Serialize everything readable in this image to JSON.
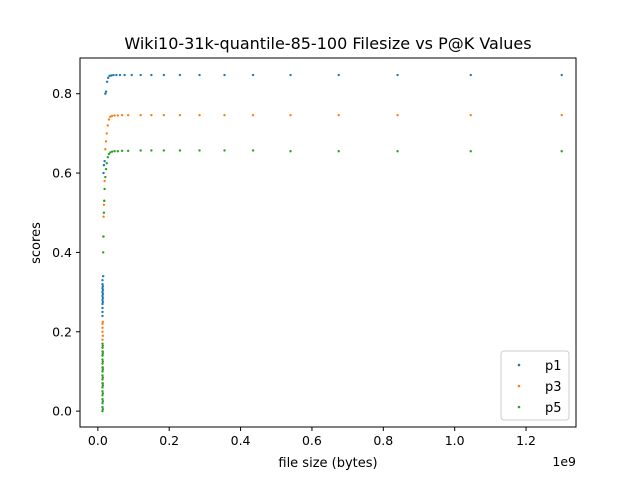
{
  "chart_data": {
    "type": "scatter",
    "title": "Wiki10-31k-quantile-85-100 Filesize vs P@K Values",
    "xlabel": "file size (bytes)",
    "ylabel": "scores",
    "x_offset_label": "1e9",
    "xlim": [
      -0.05,
      1.34
    ],
    "ylim": [
      -0.04,
      0.89
    ],
    "xticks": [
      0.0,
      0.2,
      0.4,
      0.6,
      0.8,
      1.0,
      1.2
    ],
    "xtick_labels": [
      "0.0",
      "0.2",
      "0.4",
      "0.6",
      "0.8",
      "1.0",
      "1.2"
    ],
    "yticks": [
      0.0,
      0.2,
      0.4,
      0.6,
      0.8
    ],
    "ytick_labels": [
      "0.0",
      "0.2",
      "0.4",
      "0.6",
      "0.8"
    ],
    "legend_position": "lower-right",
    "grid": false,
    "colors": {
      "p1": "#1f77b4",
      "p3": "#ff7f0e",
      "p5": "#2ca02c"
    },
    "series": [
      {
        "name": "p1",
        "points": [
          [
            0.013,
            0.33
          ],
          [
            0.013,
            0.32
          ],
          [
            0.013,
            0.31
          ],
          [
            0.013,
            0.3
          ],
          [
            0.013,
            0.29
          ],
          [
            0.013,
            0.28
          ],
          [
            0.013,
            0.27
          ],
          [
            0.013,
            0.26
          ],
          [
            0.013,
            0.25
          ],
          [
            0.013,
            0.24
          ],
          [
            0.014,
            0.315
          ],
          [
            0.014,
            0.305
          ],
          [
            0.014,
            0.295
          ],
          [
            0.014,
            0.285
          ],
          [
            0.014,
            0.275
          ],
          [
            0.015,
            0.34
          ],
          [
            0.016,
            0.6
          ],
          [
            0.017,
            0.62
          ],
          [
            0.019,
            0.63
          ],
          [
            0.021,
            0.8
          ],
          [
            0.023,
            0.805
          ],
          [
            0.026,
            0.83
          ],
          [
            0.029,
            0.84
          ],
          [
            0.033,
            0.845
          ],
          [
            0.038,
            0.846
          ],
          [
            0.044,
            0.847
          ],
          [
            0.052,
            0.847
          ],
          [
            0.062,
            0.847
          ],
          [
            0.075,
            0.847
          ],
          [
            0.095,
            0.847
          ],
          [
            0.12,
            0.847
          ],
          [
            0.15,
            0.847
          ],
          [
            0.185,
            0.847
          ],
          [
            0.23,
            0.847
          ],
          [
            0.285,
            0.847
          ],
          [
            0.355,
            0.847
          ],
          [
            0.435,
            0.847
          ],
          [
            0.54,
            0.847
          ],
          [
            0.675,
            0.847
          ],
          [
            0.84,
            0.847
          ],
          [
            1.045,
            0.847
          ],
          [
            1.3,
            0.847
          ]
        ]
      },
      {
        "name": "p3",
        "points": [
          [
            0.013,
            0.06
          ],
          [
            0.013,
            0.08
          ],
          [
            0.013,
            0.1
          ],
          [
            0.013,
            0.12
          ],
          [
            0.013,
            0.14
          ],
          [
            0.013,
            0.16
          ],
          [
            0.013,
            0.18
          ],
          [
            0.013,
            0.2
          ],
          [
            0.013,
            0.21
          ],
          [
            0.013,
            0.22
          ],
          [
            0.014,
            0.07
          ],
          [
            0.014,
            0.11
          ],
          [
            0.014,
            0.15
          ],
          [
            0.014,
            0.19
          ],
          [
            0.014,
            0.225
          ],
          [
            0.015,
            0.44
          ],
          [
            0.016,
            0.49
          ],
          [
            0.017,
            0.52
          ],
          [
            0.018,
            0.53
          ],
          [
            0.019,
            0.58
          ],
          [
            0.021,
            0.66
          ],
          [
            0.023,
            0.68
          ],
          [
            0.025,
            0.7
          ],
          [
            0.028,
            0.72
          ],
          [
            0.031,
            0.735
          ],
          [
            0.035,
            0.742
          ],
          [
            0.04,
            0.744
          ],
          [
            0.047,
            0.745
          ],
          [
            0.056,
            0.745
          ],
          [
            0.068,
            0.746
          ],
          [
            0.085,
            0.746
          ],
          [
            0.12,
            0.746
          ],
          [
            0.15,
            0.746
          ],
          [
            0.185,
            0.746
          ],
          [
            0.23,
            0.746
          ],
          [
            0.285,
            0.746
          ],
          [
            0.355,
            0.746
          ],
          [
            0.435,
            0.746
          ],
          [
            0.54,
            0.746
          ],
          [
            0.675,
            0.746
          ],
          [
            0.84,
            0.746
          ],
          [
            1.045,
            0.746
          ],
          [
            1.3,
            0.746
          ]
        ]
      },
      {
        "name": "p5",
        "points": [
          [
            0.013,
            0.0
          ],
          [
            0.013,
            0.01
          ],
          [
            0.013,
            0.02
          ],
          [
            0.013,
            0.03
          ],
          [
            0.013,
            0.04
          ],
          [
            0.013,
            0.05
          ],
          [
            0.013,
            0.06
          ],
          [
            0.013,
            0.07
          ],
          [
            0.013,
            0.08
          ],
          [
            0.013,
            0.09
          ],
          [
            0.013,
            0.1
          ],
          [
            0.013,
            0.11
          ],
          [
            0.013,
            0.12
          ],
          [
            0.013,
            0.13
          ],
          [
            0.013,
            0.14
          ],
          [
            0.013,
            0.15
          ],
          [
            0.013,
            0.16
          ],
          [
            0.013,
            0.17
          ],
          [
            0.014,
            0.005
          ],
          [
            0.014,
            0.025
          ],
          [
            0.014,
            0.045
          ],
          [
            0.014,
            0.065
          ],
          [
            0.014,
            0.085
          ],
          [
            0.014,
            0.105
          ],
          [
            0.014,
            0.125
          ],
          [
            0.014,
            0.145
          ],
          [
            0.014,
            0.165
          ],
          [
            0.015,
            0.4
          ],
          [
            0.016,
            0.44
          ],
          [
            0.017,
            0.5
          ],
          [
            0.018,
            0.53
          ],
          [
            0.019,
            0.56
          ],
          [
            0.021,
            0.59
          ],
          [
            0.023,
            0.61
          ],
          [
            0.025,
            0.625
          ],
          [
            0.028,
            0.64
          ],
          [
            0.031,
            0.648
          ],
          [
            0.035,
            0.652
          ],
          [
            0.04,
            0.654
          ],
          [
            0.047,
            0.655
          ],
          [
            0.056,
            0.655
          ],
          [
            0.068,
            0.656
          ],
          [
            0.085,
            0.656
          ],
          [
            0.12,
            0.657
          ],
          [
            0.15,
            0.657
          ],
          [
            0.185,
            0.657
          ],
          [
            0.23,
            0.657
          ],
          [
            0.285,
            0.657
          ],
          [
            0.355,
            0.657
          ],
          [
            0.435,
            0.657
          ],
          [
            0.54,
            0.655
          ],
          [
            0.675,
            0.655
          ],
          [
            0.84,
            0.655
          ],
          [
            1.045,
            0.655
          ],
          [
            1.3,
            0.655
          ]
        ]
      }
    ]
  }
}
